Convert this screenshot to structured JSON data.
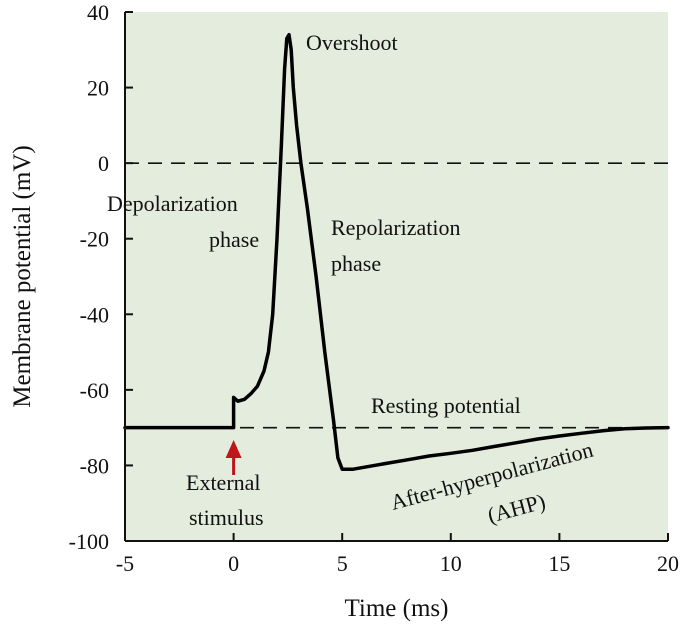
{
  "chart_data": {
    "type": "line",
    "xlabel": "Time (ms)",
    "ylabel": "Membrane potential (mV)",
    "xlim": [
      -5,
      20
    ],
    "ylim": [
      -100,
      40
    ],
    "xticks": [
      -5,
      0,
      5,
      10,
      15,
      20
    ],
    "yticks": [
      -100,
      -80,
      -60,
      -40,
      -20,
      0,
      20,
      40
    ],
    "grid": false,
    "background_color": "#e3ecdd",
    "line_color": "#000000",
    "arrow_color": "#c0141b",
    "series": [
      {
        "x": [
          -5,
          0,
          0,
          0.2,
          0.5,
          0.8,
          1.1,
          1.4,
          1.6,
          1.8,
          2.0,
          2.2,
          2.35,
          2.45,
          2.55,
          2.65,
          2.75,
          2.9,
          3.1,
          3.4,
          3.8,
          4.2,
          4.6,
          4.8,
          5.0,
          5.5,
          6,
          7,
          8,
          9,
          10,
          11,
          12,
          13,
          14,
          15,
          16,
          17,
          18,
          19,
          20
        ],
        "y": [
          -70,
          -70,
          -62,
          -63,
          -62.5,
          -61,
          -59,
          -55,
          -50,
          -40,
          -20,
          5,
          25,
          33,
          34,
          30,
          20,
          10,
          0,
          -12,
          -30,
          -50,
          -68,
          -78,
          -81,
          -81,
          -80.5,
          -79.5,
          -78.5,
          -77.5,
          -76.8,
          -76,
          -75,
          -74,
          -73,
          -72.2,
          -71.5,
          -70.8,
          -70.3,
          -70.1,
          -70
        ]
      }
    ],
    "reference_lines": [
      {
        "y": 0,
        "style": "dashed"
      },
      {
        "y": -70,
        "style": "dashed",
        "label": "Resting potential"
      }
    ],
    "annotations": {
      "overshoot": "Overshoot",
      "depolarization_1": "Depolarization",
      "depolarization_2": "phase",
      "repolarization_1": "Repolarization",
      "repolarization_2": "phase",
      "resting": "Resting potential",
      "stimulus_1": "External",
      "stimulus_2": "stimulus",
      "ahp_1": "After-hyperpolarization",
      "ahp_2": "(AHP)"
    }
  }
}
